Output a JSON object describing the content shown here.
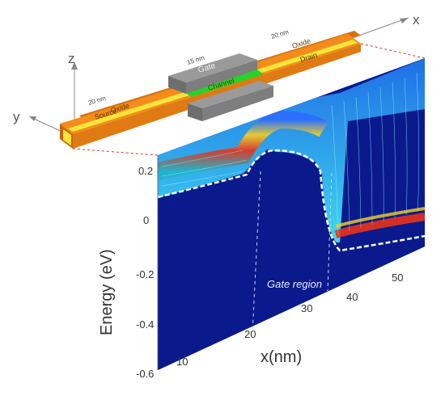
{
  "device": {
    "axes": {
      "x": "x",
      "y": "y",
      "z": "z"
    },
    "oxide_left": "Oxide",
    "oxide_right": "Oxide",
    "gate": "Gate",
    "source": "Source",
    "channel": "Channel",
    "drain": "Drain",
    "dim_left": "20 nm",
    "dim_center": "15 nm",
    "dim_right": "20 nm"
  },
  "plot": {
    "ylabel": "Energy (eV)",
    "xlabel": "x(nm)",
    "gate_region_label": "Gate region",
    "y_ticks": [
      "0.2",
      "0",
      "-0.2",
      "-0.4",
      "-0.6"
    ],
    "x_ticks": [
      "10",
      "20",
      "30",
      "40",
      "50"
    ]
  },
  "colors": {
    "oxide": "#f48c1c",
    "source_drain": "#f7e53a",
    "channel": "#23d42b",
    "gate": "#8b8b8b",
    "background_energy": "#0a1a8c",
    "conduction_band": "#ffffff"
  }
}
